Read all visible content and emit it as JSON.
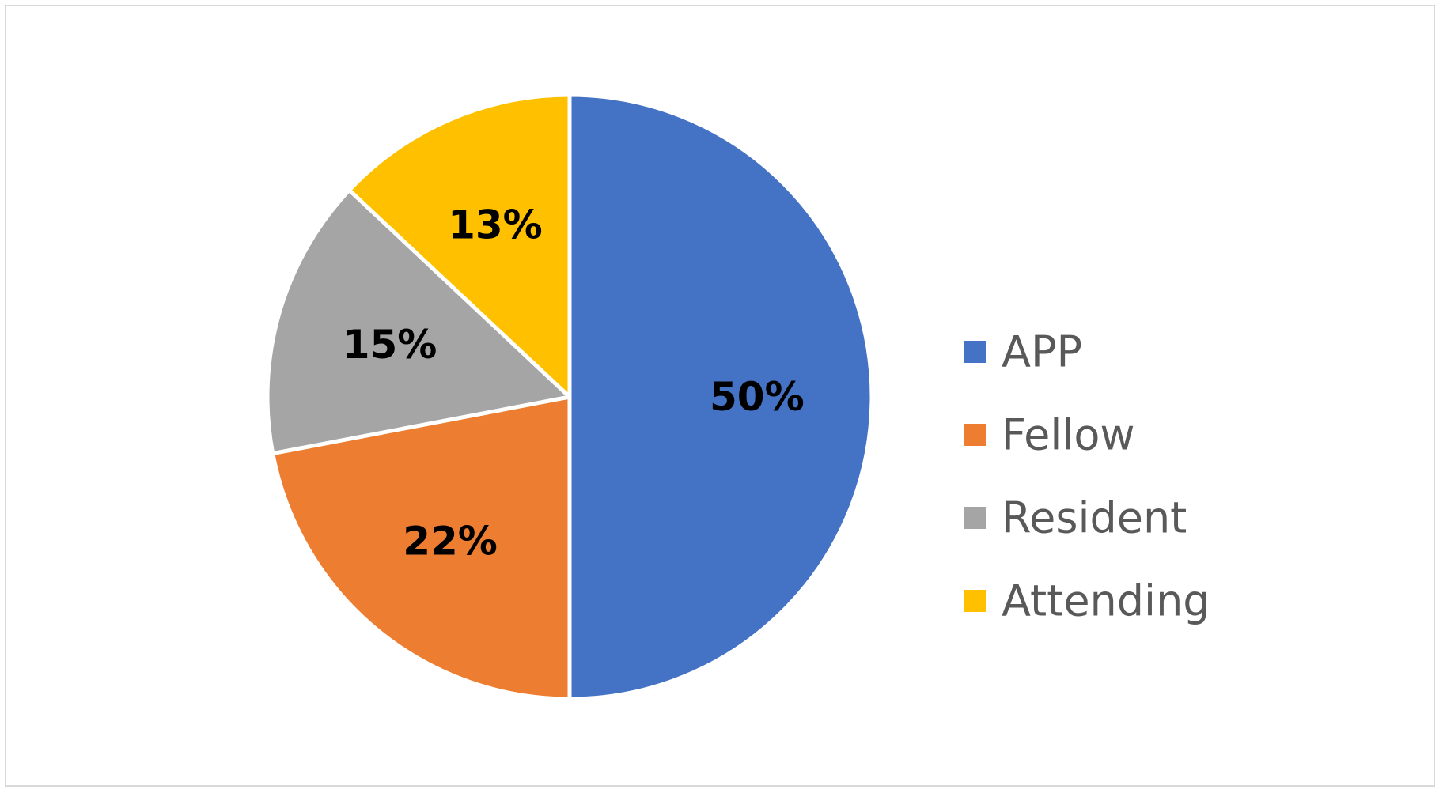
{
  "chart_data": {
    "type": "pie",
    "title": "",
    "categories": [
      "APP",
      "Fellow",
      "Resident",
      "Attending"
    ],
    "values": [
      50,
      22,
      15,
      13
    ],
    "labels": [
      "50%",
      "22%",
      "15%",
      "13%"
    ],
    "colors": [
      "#4472C4",
      "#ED7D31",
      "#A5A5A5",
      "#FFC000"
    ],
    "legend": {
      "position": "right",
      "entries": [
        "APP",
        "Fellow",
        "Resident",
        "Attending"
      ]
    },
    "grid": false
  }
}
